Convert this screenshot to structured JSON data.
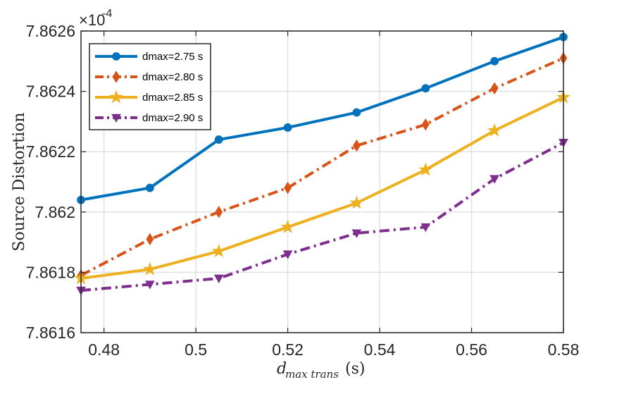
{
  "chart_data": {
    "type": "line",
    "xlabel_main": "d",
    "xlabel_sub": "max trans",
    "xlabel_unit": "(s)",
    "ylabel": "Source Distortion",
    "y_multiplier": "×10",
    "y_multiplier_exp": "-4",
    "xlim": [
      0.475,
      0.58
    ],
    "ylim": [
      7.8616,
      7.8626
    ],
    "x_ticks": [
      0.48,
      0.5,
      0.52,
      0.54,
      0.56,
      0.58
    ],
    "x_tick_labels": [
      "0.48",
      "0.5",
      "0.52",
      "0.54",
      "0.56",
      "0.58"
    ],
    "y_ticks": [
      7.8616,
      7.8618,
      7.862,
      7.8622,
      7.8624,
      7.8626
    ],
    "y_tick_labels": [
      "7.8616",
      "7.8618",
      "7.862",
      "7.8622",
      "7.8624",
      "7.8626"
    ],
    "grid": true,
    "legend_position": "top-left",
    "x": [
      0.475,
      0.49,
      0.505,
      0.52,
      0.535,
      0.55,
      0.565,
      0.58
    ],
    "series": [
      {
        "name": "dmax=2.75 s",
        "color": "#0072BD",
        "marker": "circle",
        "dash": "solid",
        "values": [
          7.86204,
          7.86208,
          7.86224,
          7.86228,
          7.86233,
          7.86241,
          7.8625,
          7.86258
        ]
      },
      {
        "name": "dmax=2.80 s",
        "color": "#D95319",
        "marker": "diamond",
        "dash": "dashdot",
        "values": [
          7.86179,
          7.86191,
          7.862,
          7.86208,
          7.86222,
          7.86229,
          7.86241,
          7.86251
        ]
      },
      {
        "name": "dmax=2.85 s",
        "color": "#EDB120",
        "marker": "star",
        "dash": "solid",
        "values": [
          7.86178,
          7.86181,
          7.86187,
          7.86195,
          7.86203,
          7.86214,
          7.86227,
          7.86238
        ]
      },
      {
        "name": "dmax=2.90 s",
        "color": "#7E2F8E",
        "marker": "triangle-down",
        "dash": "dashdot",
        "values": [
          7.86174,
          7.86176,
          7.86178,
          7.86186,
          7.86193,
          7.86195,
          7.86211,
          7.86223
        ]
      }
    ]
  }
}
